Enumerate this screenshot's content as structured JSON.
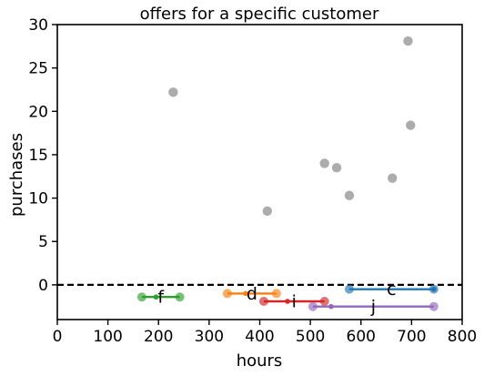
{
  "chart_data": {
    "type": "scatter",
    "title": "offers for a specific customer",
    "xlabel": "hours",
    "ylabel": "purchases",
    "xlim": [
      0,
      800
    ],
    "ylim": [
      -4,
      30
    ],
    "xticks": [
      0,
      100,
      200,
      300,
      400,
      500,
      600,
      700,
      800
    ],
    "yticks": [
      0,
      5,
      10,
      15,
      20,
      25,
      30
    ],
    "grid": false,
    "reference_line": {
      "y": 0,
      "style": "dashed",
      "color": "#000000"
    },
    "purchase_points": {
      "color": "#8c8c8c",
      "points": [
        {
          "x": 229,
          "y": 22.2
        },
        {
          "x": 415,
          "y": 8.5
        },
        {
          "x": 528,
          "y": 14.0
        },
        {
          "x": 552,
          "y": 13.5
        },
        {
          "x": 577,
          "y": 10.3
        },
        {
          "x": 662,
          "y": 12.3
        },
        {
          "x": 693,
          "y": 28.1
        },
        {
          "x": 698,
          "y": 18.4
        }
      ]
    },
    "offers": [
      {
        "label": "f",
        "color": "#2ca02c",
        "start": 167,
        "end": 242,
        "mid": 195,
        "y": -1.4
      },
      {
        "label": "d",
        "color": "#ff7f0e",
        "start": 336,
        "end": 433,
        "mid": 372,
        "y": -1.0
      },
      {
        "label": "i",
        "color": "#d62728",
        "start": 408,
        "end": 528,
        "mid": 455,
        "y": -1.9
      },
      {
        "label": "c",
        "color": "#1f77b4",
        "start": 577,
        "end": 744,
        "mid": 744,
        "y": -0.5
      },
      {
        "label": "j",
        "color": "#9467bd",
        "start": 505,
        "end": 744,
        "mid": 541,
        "y": -2.5
      }
    ]
  }
}
